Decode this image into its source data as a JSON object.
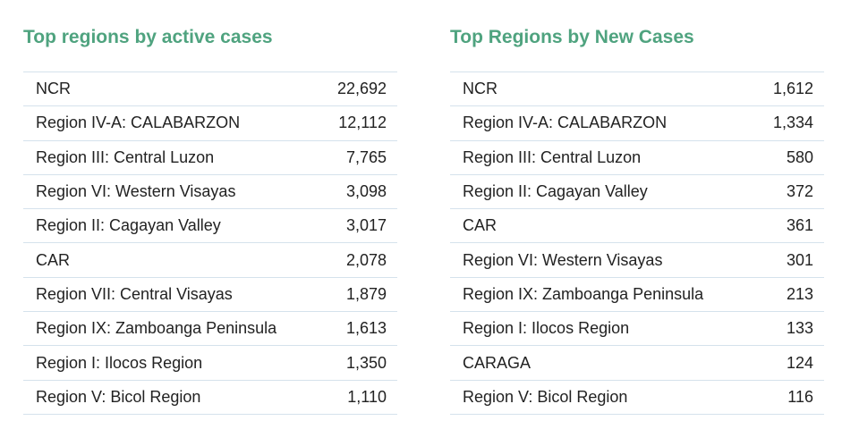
{
  "colors": {
    "title": "#4fa37f",
    "divider": "#d5e2ec",
    "text": "#222222"
  },
  "active_cases": {
    "title": "Top regions by active cases",
    "rows": [
      {
        "region": "NCR",
        "value": "22,692"
      },
      {
        "region": "Region IV-A: CALABARZON",
        "value": "12,112"
      },
      {
        "region": "Region III: Central Luzon",
        "value": "7,765"
      },
      {
        "region": "Region VI: Western Visayas",
        "value": "3,098"
      },
      {
        "region": "Region II: Cagayan Valley",
        "value": "3,017"
      },
      {
        "region": "CAR",
        "value": "2,078"
      },
      {
        "region": "Region VII: Central Visayas",
        "value": "1,879"
      },
      {
        "region": "Region IX: Zamboanga Peninsula",
        "value": "1,613"
      },
      {
        "region": "Region I: Ilocos Region",
        "value": "1,350"
      },
      {
        "region": "Region V: Bicol Region",
        "value": "1,110"
      }
    ]
  },
  "new_cases": {
    "title": "Top Regions by New Cases",
    "rows": [
      {
        "region": "NCR",
        "value": "1,612"
      },
      {
        "region": "Region IV-A: CALABARZON",
        "value": "1,334"
      },
      {
        "region": "Region III: Central Luzon",
        "value": "580"
      },
      {
        "region": "Region II: Cagayan Valley",
        "value": "372"
      },
      {
        "region": "CAR",
        "value": "361"
      },
      {
        "region": "Region VI: Western Visayas",
        "value": "301"
      },
      {
        "region": "Region IX: Zamboanga Peninsula",
        "value": "213"
      },
      {
        "region": "Region I: Ilocos Region",
        "value": "133"
      },
      {
        "region": "CARAGA",
        "value": "124"
      },
      {
        "region": "Region V: Bicol Region",
        "value": "116"
      }
    ]
  }
}
